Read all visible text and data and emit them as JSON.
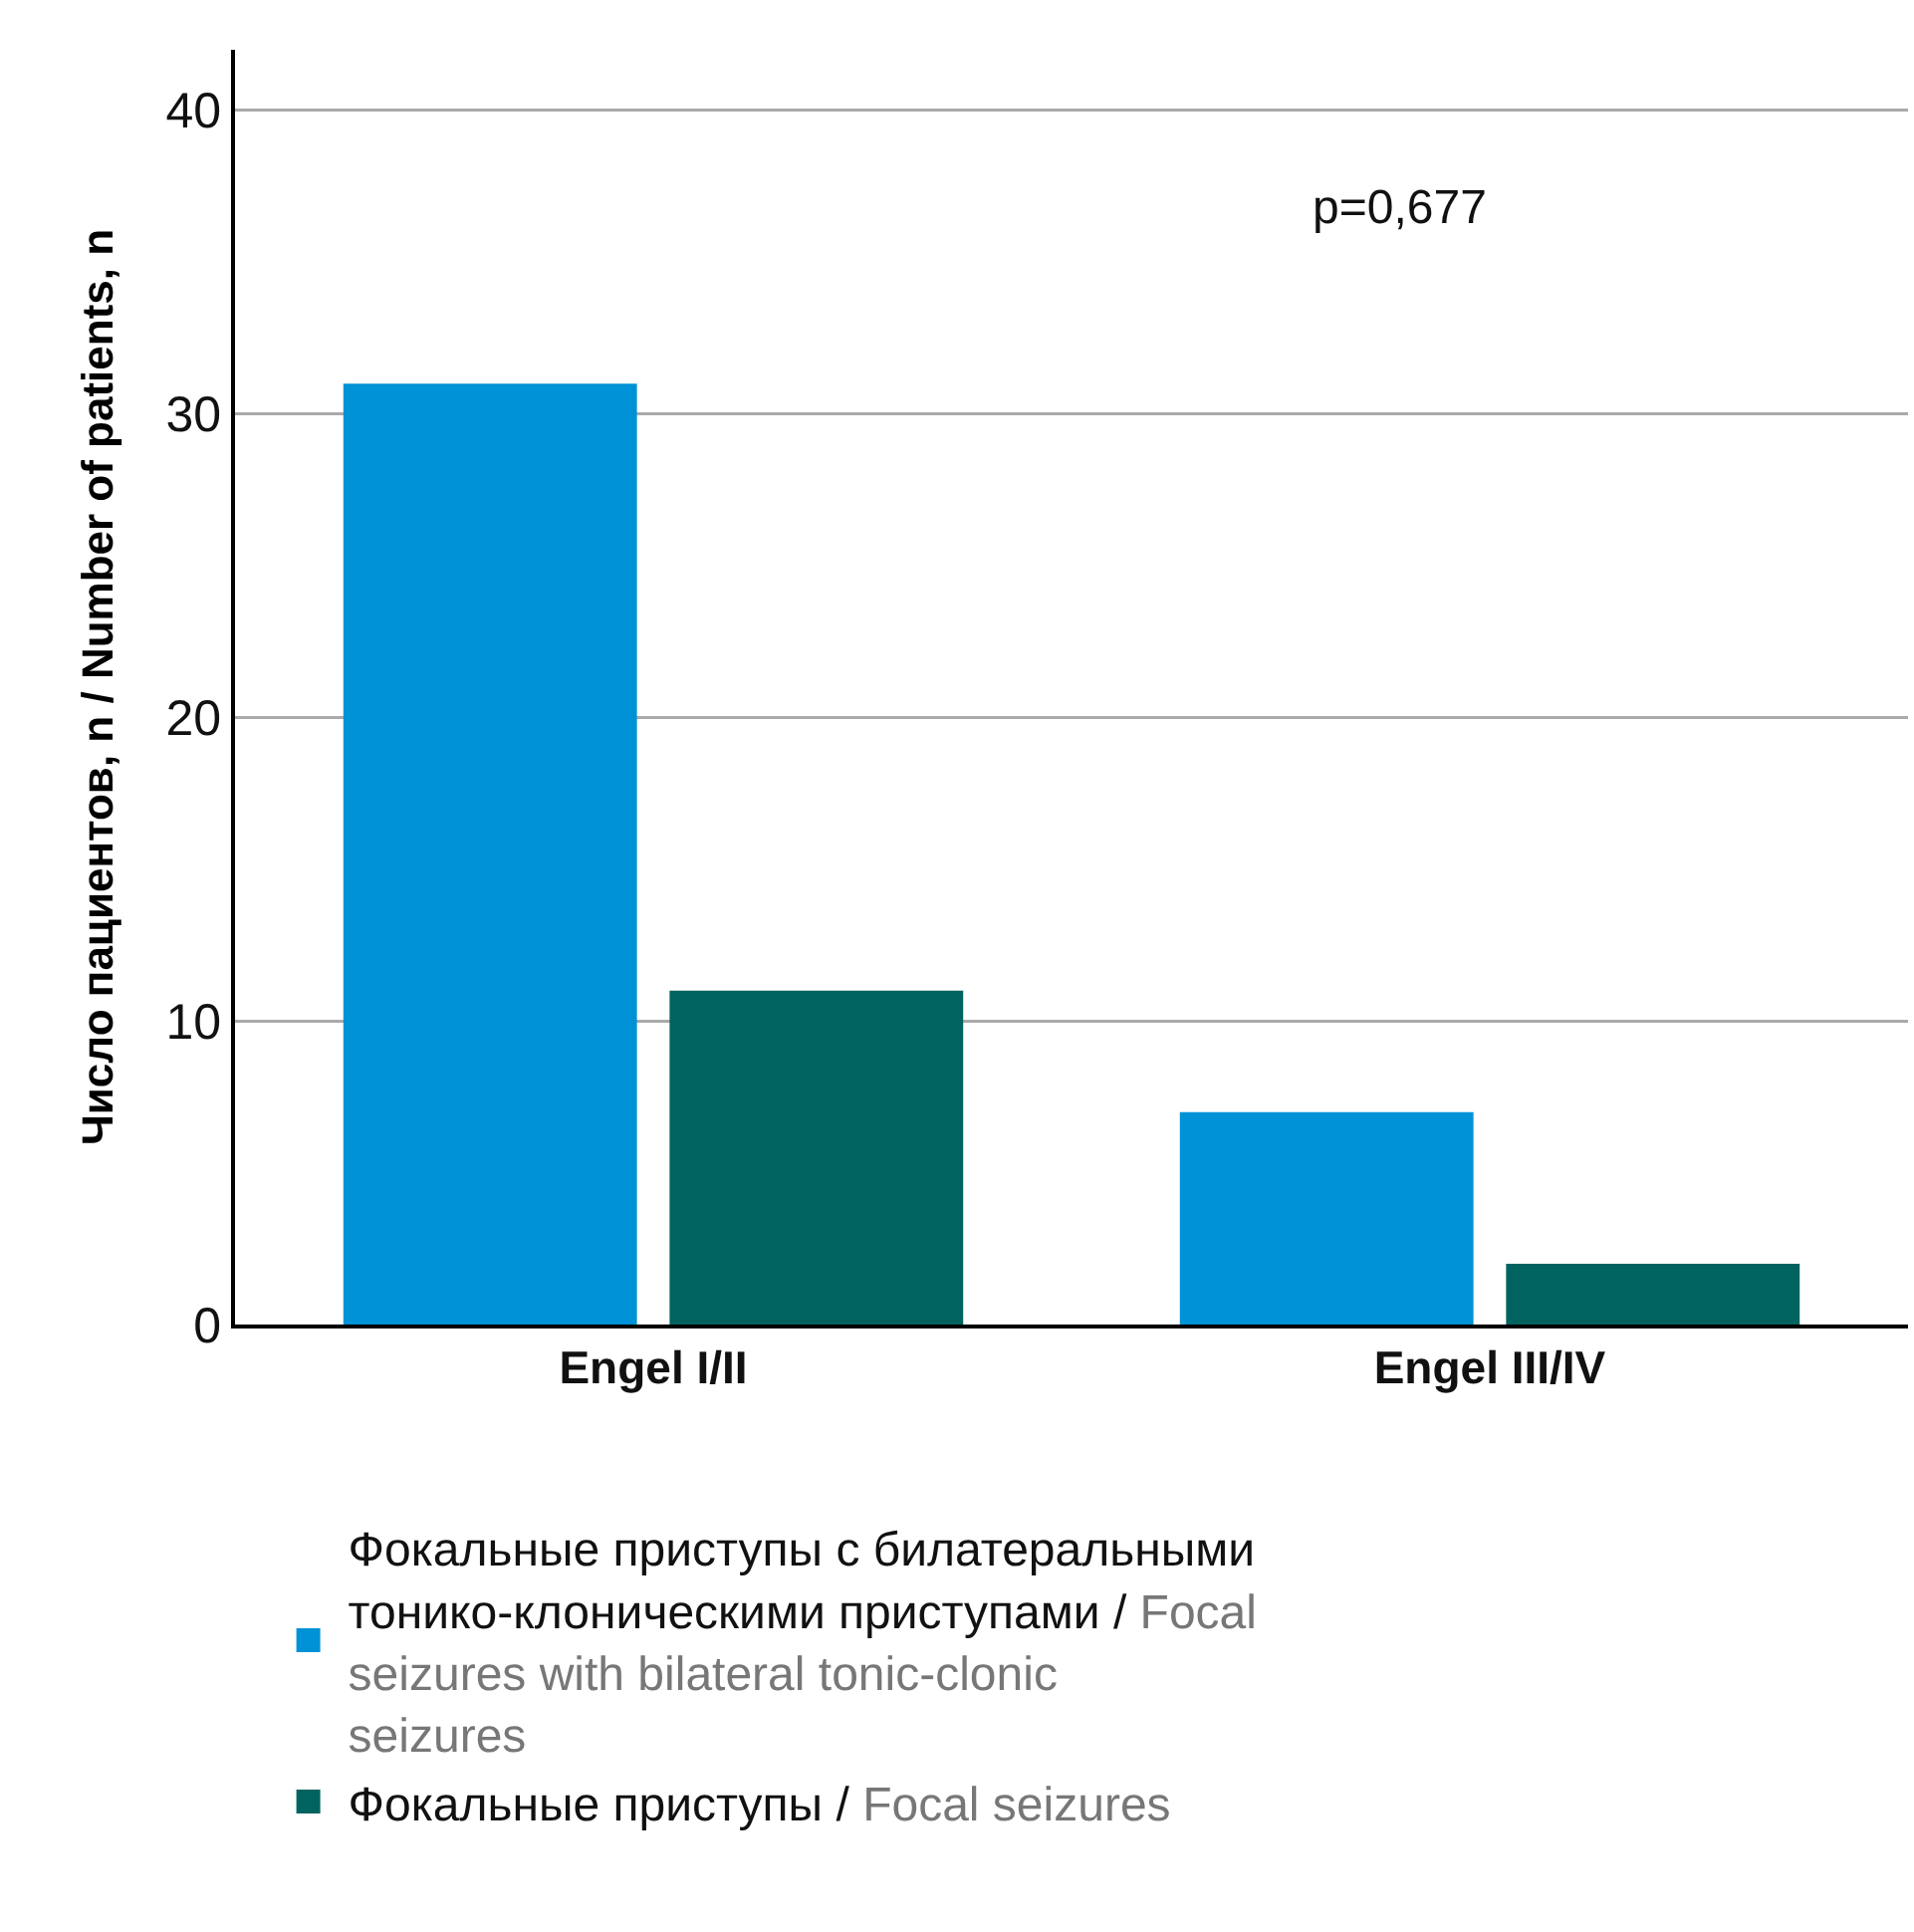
{
  "chart_data": {
    "type": "bar",
    "ylabel": "Число пациентов, n / Number of patients, n",
    "categories": [
      "Engel I/II",
      "Engel III/IV"
    ],
    "series": [
      {
        "name": "Фокальные приступы с билатеральными тонико-клоническими приступами / Focal seizures with bilateral tonic-clonic seizures",
        "color": "#0092d6",
        "values": [
          31,
          7
        ]
      },
      {
        "name": "Фокальные приступы / Focal seizures",
        "color": "#00635f",
        "values": [
          11,
          2
        ]
      }
    ],
    "ylim": [
      0,
      42
    ],
    "yticks": [
      0,
      10,
      20,
      30,
      40
    ],
    "grid": "y",
    "legend": "bottom",
    "annotations": [
      "p=0,677"
    ]
  }
}
